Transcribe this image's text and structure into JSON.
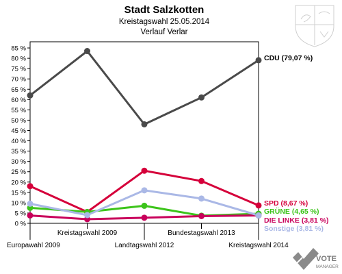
{
  "chart_data": {
    "type": "line",
    "title": "Stadt Salzkotten",
    "subtitle": "Kreistagswahl 25.05.2014",
    "subtitle2": "Verlauf Verlar",
    "categories": [
      "Europawahl 2009",
      "Kreistagswahl 2009",
      "Landtagswahl 2012",
      "Bundestagswahl 2013",
      "Kreistagswahl 2014"
    ],
    "ylim": [
      0,
      88
    ],
    "yticks": [
      "0 %",
      "5 %",
      "10 %",
      "15 %",
      "20 %",
      "25 %",
      "30 %",
      "35 %",
      "40 %",
      "45 %",
      "50 %",
      "55 %",
      "60 %",
      "65 %",
      "70 %",
      "75 %",
      "80 %",
      "85 %"
    ],
    "ytick_values": [
      0,
      5,
      10,
      15,
      20,
      25,
      30,
      35,
      40,
      45,
      50,
      55,
      60,
      65,
      70,
      75,
      80,
      85
    ],
    "grid": false,
    "series": [
      {
        "name": "CDU",
        "label": "CDU (79,07 %)",
        "color": "#4a4a4a",
        "label_color": "#000000",
        "values": [
          62,
          83.5,
          48,
          61,
          79.07
        ]
      },
      {
        "name": "SPD",
        "label": "SPD (8,67 %)",
        "color": "#d5003a",
        "label_color": "#d5003a",
        "values": [
          18,
          5.5,
          25.5,
          20.5,
          8.67
        ]
      },
      {
        "name": "GRÜNE",
        "label": "GRÜNE (4,65 %)",
        "color": "#3cc41a",
        "label_color": "#3cc41a",
        "values": [
          7.5,
          5.5,
          8.5,
          3.7,
          4.65
        ]
      },
      {
        "name": "DIE LINKE",
        "label": "DIE LINKE (3,81 %)",
        "color": "#c8005a",
        "label_color": "#c8005a",
        "values": [
          3.8,
          2,
          2.7,
          3.5,
          3.81
        ]
      },
      {
        "name": "Sonstige",
        "label": "Sonstige (3,81 %)",
        "color": "#aab8e6",
        "label_color": "#aab8e6",
        "values": [
          9.5,
          4,
          16,
          12,
          3.81
        ]
      }
    ]
  },
  "logo": {
    "text1": "VOTE",
    "text2": "MANAGER"
  }
}
